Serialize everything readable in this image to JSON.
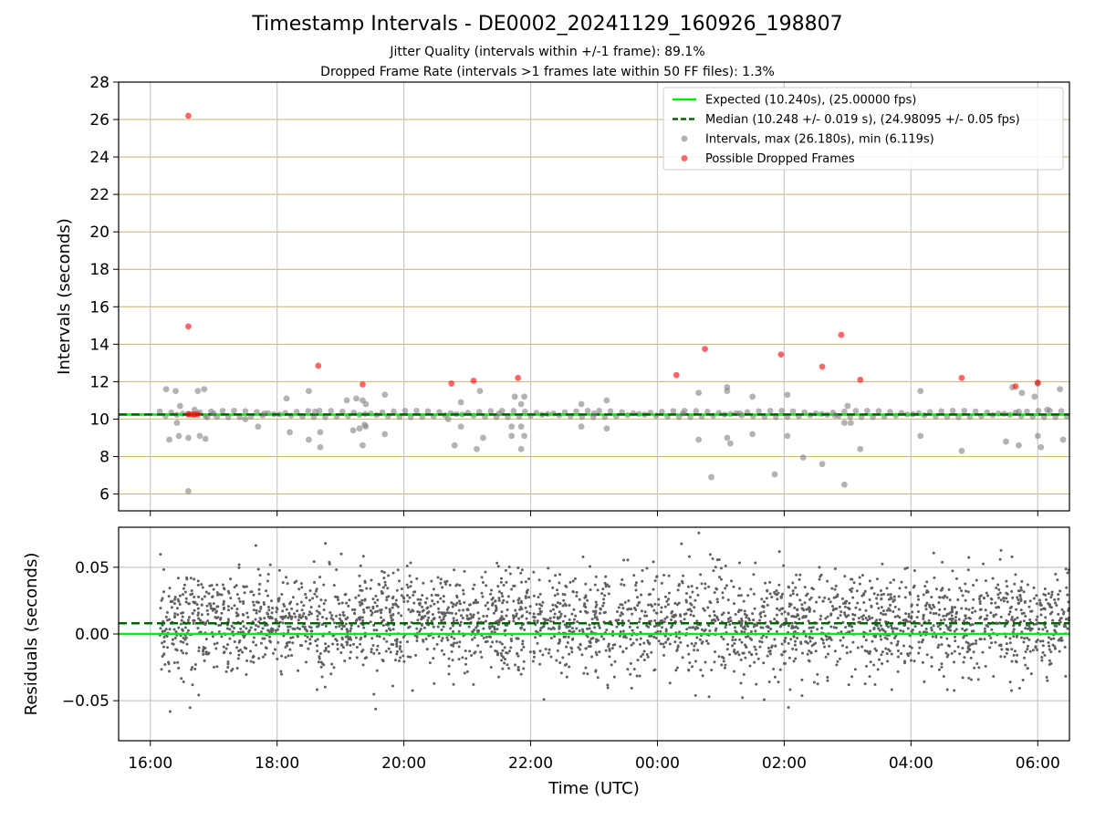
{
  "chart_data": [
    {
      "type": "scatter",
      "title": "Timestamp Intervals - DE0002_20241129_160926_198807",
      "subtitles": [
        "Jitter Quality (intervals within +/-1 frame): 89.1%",
        "Dropped Frame Rate (intervals >1 frames late within 50 FF files): 1.3%"
      ],
      "ylabel": "Intervals (seconds)",
      "ylim": [
        5.1,
        28
      ],
      "yticks": [
        "6",
        "8",
        "10",
        "12",
        "14",
        "16",
        "18",
        "20",
        "22",
        "24",
        "26",
        "28"
      ],
      "xlim_hours": [
        15.5,
        30.5
      ],
      "grid": true,
      "legend_position": "upper right",
      "legend": [
        {
          "label": "Expected (10.240s), (25.00000 fps)",
          "style": "solid-line",
          "color": "#00ee00"
        },
        {
          "label": "Median (10.248 +/- 0.019 s), (24.98095 +/- 0.05 fps)",
          "style": "dashed-line",
          "color": "#006400"
        },
        {
          "label": "Intervals, max (26.180s), min (6.119s)",
          "style": "marker",
          "color": "#808080"
        },
        {
          "label": "Possible Dropped Frames",
          "style": "marker",
          "color": "#ff0000"
        }
      ],
      "expected": 10.24,
      "median": 10.248,
      "series": [
        {
          "name": "Intervals, max (26.180s), min (6.119s)",
          "color": "#808080",
          "points": [
            [
              16.25,
              11.6
            ],
            [
              16.3,
              8.9
            ],
            [
              16.4,
              11.5
            ],
            [
              16.42,
              9.8
            ],
            [
              16.45,
              9.1
            ],
            [
              16.47,
              10.7
            ],
            [
              16.6,
              6.15
            ],
            [
              16.6,
              9.0
            ],
            [
              16.7,
              10.5
            ],
            [
              16.75,
              11.5
            ],
            [
              16.78,
              9.1
            ],
            [
              16.85,
              11.6
            ],
            [
              16.87,
              8.95
            ],
            [
              16.9,
              10.1
            ],
            [
              17.0,
              10.3
            ],
            [
              17.5,
              10.0
            ],
            [
              17.7,
              9.6
            ],
            [
              17.8,
              10.3
            ],
            [
              18.15,
              11.1
            ],
            [
              18.2,
              9.3
            ],
            [
              18.5,
              8.9
            ],
            [
              18.5,
              11.5
            ],
            [
              18.6,
              10.4
            ],
            [
              18.68,
              9.3
            ],
            [
              18.68,
              8.5
            ],
            [
              19.1,
              11.0
            ],
            [
              19.2,
              9.4
            ],
            [
              19.25,
              11.1
            ],
            [
              19.3,
              9.5
            ],
            [
              19.35,
              11.0
            ],
            [
              19.38,
              9.7
            ],
            [
              19.35,
              8.6
            ],
            [
              19.4,
              10.8
            ],
            [
              19.4,
              9.6
            ],
            [
              19.7,
              11.3
            ],
            [
              19.7,
              9.2
            ],
            [
              20.7,
              10.0
            ],
            [
              20.8,
              8.6
            ],
            [
              20.9,
              10.9
            ],
            [
              20.9,
              9.6
            ],
            [
              21.15,
              8.4
            ],
            [
              21.2,
              11.5
            ],
            [
              21.25,
              9.0
            ],
            [
              21.5,
              10.3
            ],
            [
              21.7,
              9.6
            ],
            [
              21.7,
              9.1
            ],
            [
              21.75,
              11.2
            ],
            [
              21.85,
              10.8
            ],
            [
              21.85,
              9.6
            ],
            [
              21.85,
              8.4
            ],
            [
              21.9,
              11.2
            ],
            [
              21.9,
              9.1
            ],
            [
              22.8,
              10.8
            ],
            [
              22.8,
              9.6
            ],
            [
              23.0,
              10.3
            ],
            [
              23.2,
              11.0
            ],
            [
              23.2,
              9.5
            ],
            [
              24.4,
              10.3
            ],
            [
              24.65,
              11.4
            ],
            [
              24.65,
              8.9
            ],
            [
              24.85,
              6.9
            ],
            [
              25.1,
              11.5
            ],
            [
              25.1,
              11.7
            ],
            [
              25.1,
              9.0
            ],
            [
              25.15,
              8.7
            ],
            [
              25.3,
              10.3
            ],
            [
              25.5,
              11.2
            ],
            [
              25.5,
              9.2
            ],
            [
              25.85,
              7.05
            ],
            [
              26.05,
              11.3
            ],
            [
              26.05,
              9.1
            ],
            [
              26.3,
              7.95
            ],
            [
              26.6,
              7.6
            ],
            [
              26.8,
              10.2
            ],
            [
              26.95,
              9.8
            ],
            [
              26.95,
              6.5
            ],
            [
              27.0,
              10.7
            ],
            [
              27.05,
              9.8
            ],
            [
              27.2,
              8.4
            ],
            [
              28.15,
              11.5
            ],
            [
              28.15,
              9.1
            ],
            [
              28.8,
              8.3
            ],
            [
              29.5,
              8.8
            ],
            [
              29.6,
              11.7
            ],
            [
              29.7,
              10.4
            ],
            [
              29.75,
              11.4
            ],
            [
              29.7,
              8.6
            ],
            [
              29.95,
              11.2
            ],
            [
              30.0,
              9.1
            ],
            [
              30.05,
              8.5
            ],
            [
              30.15,
              10.5
            ],
            [
              30.35,
              11.6
            ],
            [
              30.4,
              8.9
            ],
            [
              30.0,
              11.9
            ]
          ]
        },
        {
          "name": "Possible Dropped Frames",
          "color": "#ff0000",
          "points": [
            [
              16.6,
              26.2
            ],
            [
              16.6,
              14.95
            ],
            [
              16.6,
              10.25
            ],
            [
              16.65,
              10.25
            ],
            [
              16.7,
              10.25
            ],
            [
              16.75,
              10.25
            ],
            [
              18.65,
              12.85
            ],
            [
              19.35,
              11.85
            ],
            [
              20.75,
              11.9
            ],
            [
              21.1,
              12.05
            ],
            [
              21.8,
              12.2
            ],
            [
              24.3,
              12.35
            ],
            [
              24.75,
              13.75
            ],
            [
              25.95,
              13.45
            ],
            [
              26.6,
              12.8
            ],
            [
              26.9,
              14.5
            ],
            [
              27.2,
              12.1
            ],
            [
              28.8,
              12.2
            ],
            [
              29.65,
              11.75
            ],
            [
              30.0,
              11.95
            ]
          ]
        }
      ]
    },
    {
      "type": "scatter",
      "ylabel": "Residuals (seconds)",
      "xlabel": "Time (UTC)",
      "ylim": [
        -0.08,
        0.08
      ],
      "yticks": [
        "−0.05",
        "0.00",
        "0.05"
      ],
      "xticks": [
        "16:00",
        "18:00",
        "20:00",
        "22:00",
        "00:00",
        "02:00",
        "04:00",
        "06:00"
      ],
      "xlim_hours": [
        15.5,
        30.5
      ],
      "grid": true,
      "expected_residual": 0.0,
      "median_residual": 0.008,
      "series": [
        {
          "name": "Residuals",
          "color": "#606060",
          "count": 3000,
          "center": 0.008,
          "spread": 0.019,
          "x_start": 16.15,
          "x_end": 30.5
        }
      ]
    }
  ]
}
